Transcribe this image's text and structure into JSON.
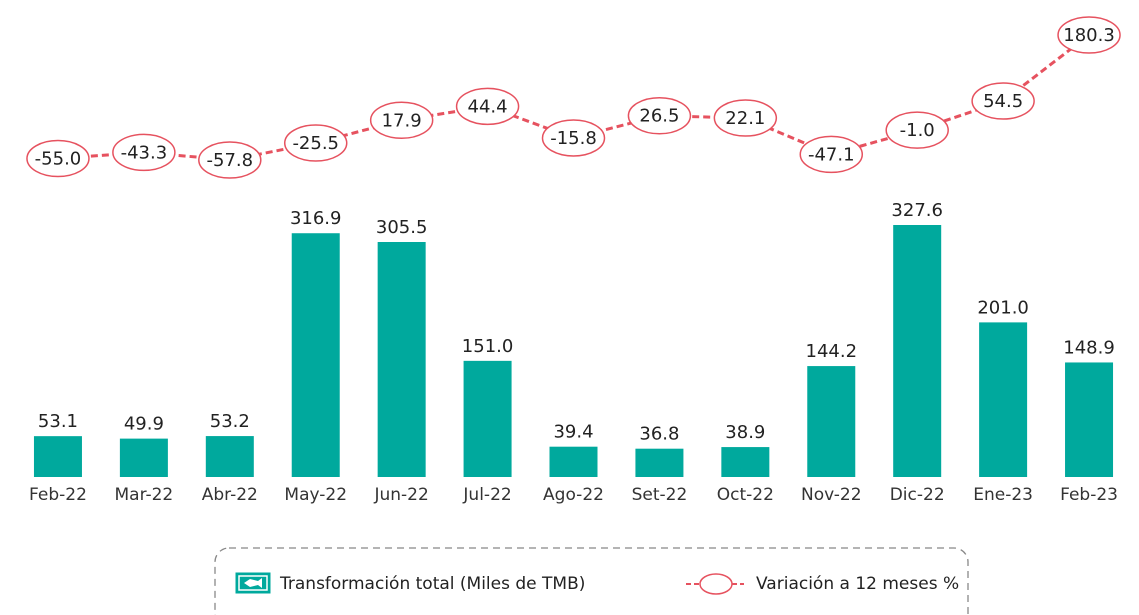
{
  "chart_data": {
    "type": "bar",
    "categories": [
      "Feb-22",
      "Mar-22",
      "Abr-22",
      "May-22",
      "Jun-22",
      "Jul-22",
      "Ago-22",
      "Set-22",
      "Oct-22",
      "Nov-22",
      "Dic-22",
      "Ene-23",
      "Feb-23"
    ],
    "series": [
      {
        "name": "Transformación total (Miles de TMB)",
        "type": "bar",
        "color": "#00a99d",
        "values": [
          53.1,
          49.9,
          53.2,
          316.9,
          305.5,
          151.0,
          39.4,
          36.8,
          38.9,
          144.2,
          327.6,
          201.0,
          148.9
        ],
        "value_labels": [
          "53.1",
          "49.9",
          "53.2",
          "316.9",
          "305.5",
          "151.0",
          "39.4",
          "36.8",
          "38.9",
          "144.2",
          "327.6",
          "201.0",
          "148.9"
        ]
      },
      {
        "name": "Variación a 12 meses %",
        "type": "line",
        "axis": "y2",
        "color": "#e6525f",
        "values": [
          -55.0,
          -43.3,
          -57.8,
          -25.5,
          17.9,
          44.4,
          -15.8,
          26.5,
          22.1,
          -47.1,
          -1.0,
          54.5,
          180.3
        ],
        "value_labels": [
          "-55.0",
          "-43.3",
          "-57.8",
          "-25.5",
          "17.9",
          "44.4",
          "-15.8",
          "26.5",
          "22.1",
          "-47.1",
          "-1.0",
          "54.5",
          "180.3"
        ]
      }
    ]
  }
}
